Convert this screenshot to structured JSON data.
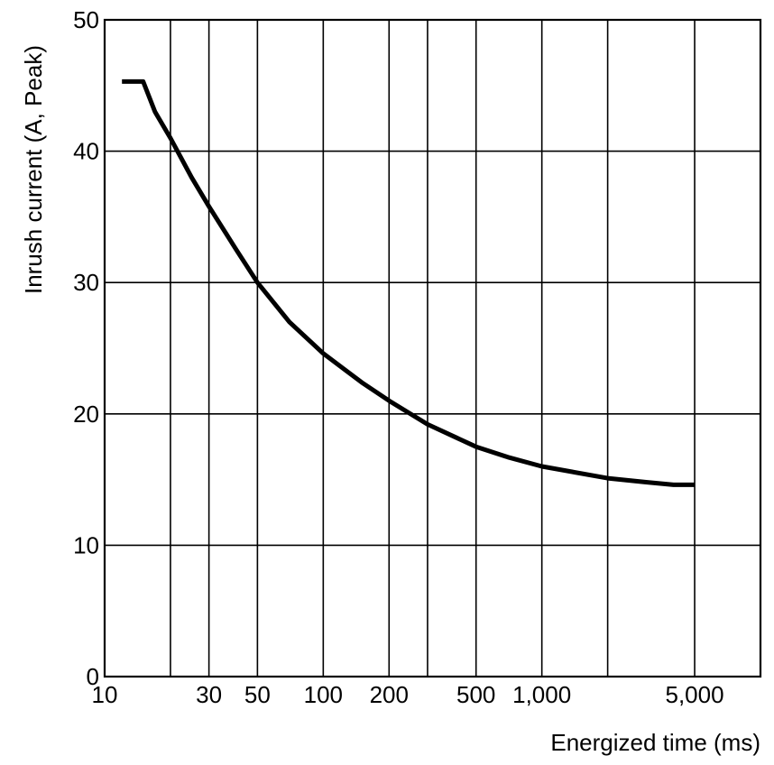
{
  "chart_data": {
    "type": "line",
    "title": "",
    "xlabel": "Energized time (ms)",
    "ylabel": "Inrush current  (A, Peak)",
    "x_scale": "log",
    "xlim": [
      10,
      10000
    ],
    "ylim": [
      0,
      50
    ],
    "grid": true,
    "x_gridlines": [
      20,
      30,
      50,
      100,
      200,
      300,
      500,
      1000,
      2000,
      5000
    ],
    "y_gridlines": [
      10,
      20,
      30,
      40
    ],
    "x_ticks": [
      {
        "value": 10,
        "label": "10"
      },
      {
        "value": 30,
        "label": "30"
      },
      {
        "value": 50,
        "label": "50"
      },
      {
        "value": 100,
        "label": "100"
      },
      {
        "value": 200,
        "label": "200"
      },
      {
        "value": 500,
        "label": "500"
      },
      {
        "value": 1000,
        "label": "1,000"
      },
      {
        "value": 5000,
        "label": "5,000"
      }
    ],
    "y_ticks": [
      {
        "value": 0,
        "label": "0"
      },
      {
        "value": 10,
        "label": "10"
      },
      {
        "value": 20,
        "label": "20"
      },
      {
        "value": 30,
        "label": "30"
      },
      {
        "value": 40,
        "label": "40"
      },
      {
        "value": 50,
        "label": "50"
      }
    ],
    "series": [
      {
        "color": "#000000",
        "x": [
          12,
          15,
          17,
          20,
          25,
          30,
          40,
          50,
          70,
          100,
          150,
          200,
          300,
          500,
          700,
          1000,
          2000,
          3000,
          4000,
          5000
        ],
        "y": [
          45.3,
          45.3,
          43.0,
          41.0,
          38.0,
          35.8,
          32.5,
          30.0,
          27.0,
          24.6,
          22.4,
          21.0,
          19.2,
          17.5,
          16.7,
          16.0,
          15.1,
          14.8,
          14.6,
          14.6
        ]
      }
    ]
  }
}
